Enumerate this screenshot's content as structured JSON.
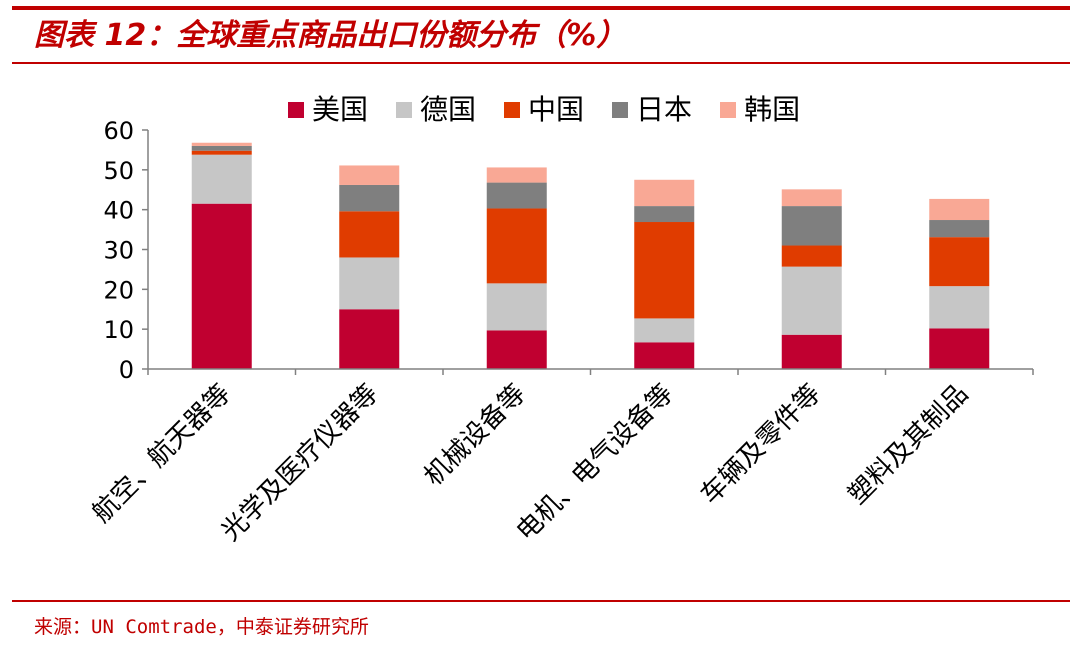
{
  "title": "图表 12：全球重点商品出口份额分布（%）",
  "source": "来源：UN Comtrade，中泰证券研究所",
  "colors": {
    "accent": "#c00000"
  },
  "chart_data": {
    "type": "bar",
    "stacked": true,
    "categories": [
      "航空、航天器等",
      "光学及医疗仪器等",
      "机械设备等",
      "电机、电气设备等",
      "车辆及零件等",
      "塑料及其制品"
    ],
    "series": [
      {
        "name": "美国",
        "color": "#c00030",
        "values": [
          41.5,
          15.0,
          9.7,
          6.7,
          8.6,
          10.2
        ]
      },
      {
        "name": "德国",
        "color": "#c6c6c6",
        "values": [
          12.3,
          13.0,
          11.8,
          6.0,
          17.1,
          10.6
        ]
      },
      {
        "name": "中国",
        "color": "#e03c00",
        "values": [
          1.0,
          11.6,
          18.8,
          24.2,
          5.3,
          12.3
        ]
      },
      {
        "name": "日本",
        "color": "#7f7f7f",
        "values": [
          1.2,
          6.6,
          6.5,
          4.0,
          9.9,
          4.3
        ]
      },
      {
        "name": "韩国",
        "color": "#f9a895",
        "values": [
          0.8,
          4.9,
          3.8,
          6.6,
          4.2,
          5.3
        ]
      }
    ],
    "yticks": [
      0,
      10,
      20,
      30,
      40,
      50,
      60
    ],
    "ylim": [
      0,
      60
    ],
    "xlabel": "",
    "ylabel": "",
    "legend": "top-center",
    "grid": false
  }
}
